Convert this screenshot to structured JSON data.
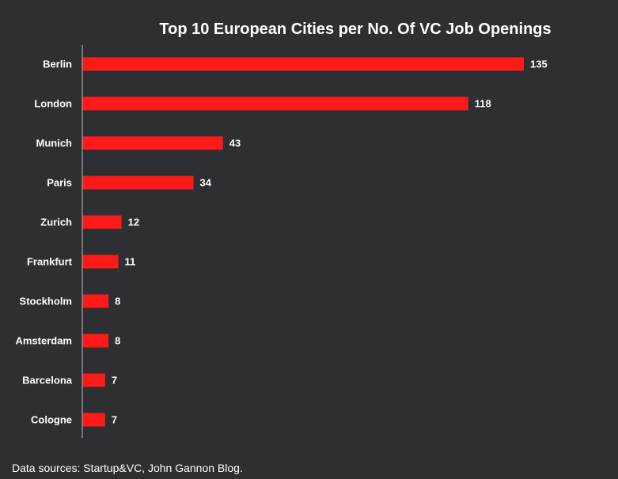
{
  "chart_data": {
    "type": "bar",
    "orientation": "horizontal",
    "title": "Top 10 European Cities per No. Of VC Job Openings",
    "categories": [
      "Berlin",
      "London",
      "Munich",
      "Paris",
      "Zurich",
      "Frankfurt",
      "Stockholm",
      "Amsterdam",
      "Barcelona",
      "Cologne"
    ],
    "values": [
      135,
      118,
      43,
      34,
      12,
      11,
      8,
      8,
      7,
      7
    ],
    "xlim": [
      0,
      135
    ],
    "grid": false,
    "data_labels": true,
    "bar_color": "#ff1a1a",
    "axis_color": "#8c8c8c"
  },
  "footer": {
    "source": "Data sources: Startup&VC, John Gannon Blog."
  }
}
